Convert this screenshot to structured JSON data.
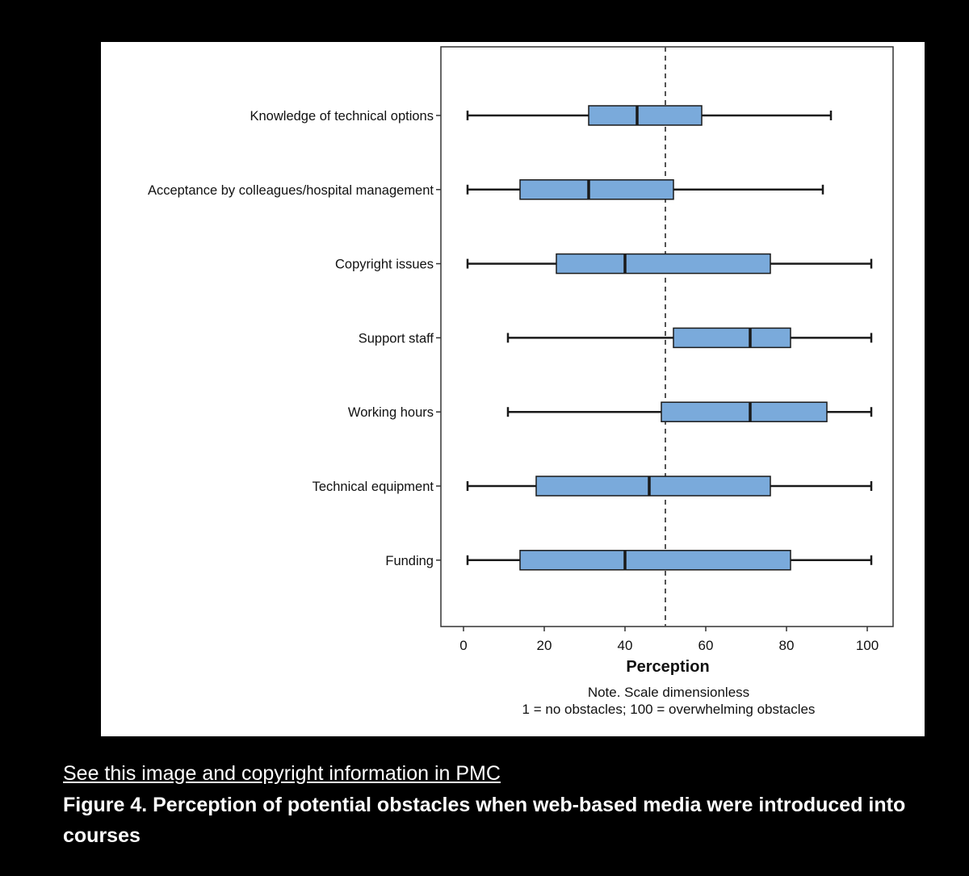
{
  "link_text": "See this image and copyright information in PMC",
  "caption": "Figure 4. Perception of potential obstacles when web-based media were introduced into courses",
  "colors": {
    "background": "#000000",
    "panel": "#ffffff",
    "box_fill": "#7aaadb",
    "box_stroke": "#1a1a1a",
    "reference_line": "#555555"
  },
  "chart_data": {
    "type": "boxplot",
    "orientation": "horizontal",
    "xlabel": "Perception",
    "xlim": [
      -5,
      107
    ],
    "x_ticks": [
      0,
      20,
      40,
      60,
      80,
      100
    ],
    "reference_line": 50,
    "grid": false,
    "note": [
      "Note. Scale dimensionless",
      "1 = no obstacles; 100 = overwhelming obstacles"
    ],
    "categories": [
      {
        "label": "Knowledge of technical options",
        "min": 1,
        "q1": 31,
        "median": 43,
        "q3": 59,
        "max": 91
      },
      {
        "label": "Acceptance by colleagues/hospital management",
        "min": 1,
        "q1": 14,
        "median": 31,
        "q3": 52,
        "max": 89
      },
      {
        "label": "Copyright issues",
        "min": 1,
        "q1": 23,
        "median": 40,
        "q3": 76,
        "max": 101
      },
      {
        "label": "Support staff",
        "min": 11,
        "q1": 52,
        "median": 71,
        "q3": 81,
        "max": 101
      },
      {
        "label": "Working hours",
        "min": 11,
        "q1": 49,
        "median": 71,
        "q3": 90,
        "max": 101
      },
      {
        "label": "Technical equipment",
        "min": 1,
        "q1": 18,
        "median": 46,
        "q3": 76,
        "max": 101
      },
      {
        "label": "Funding",
        "min": 1,
        "q1": 14,
        "median": 40,
        "q3": 81,
        "max": 101
      }
    ]
  }
}
